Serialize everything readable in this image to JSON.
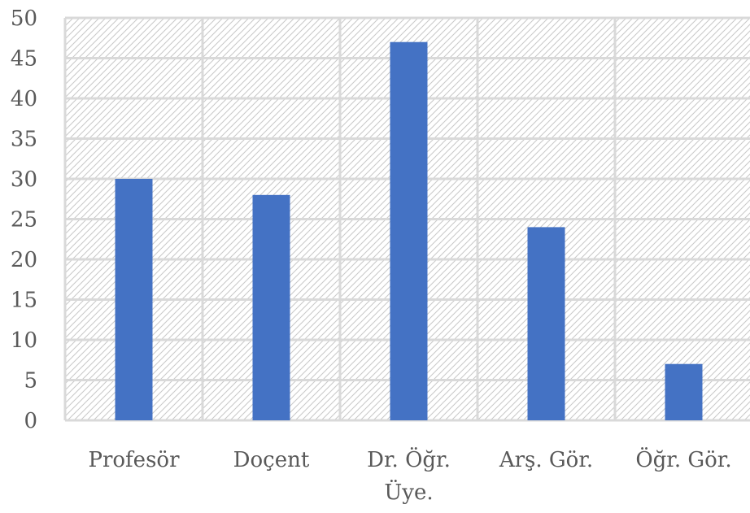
{
  "chart_data": {
    "type": "bar",
    "title": "",
    "xlabel": "",
    "ylabel": "",
    "categories": [
      [
        "Profesör"
      ],
      [
        "Doçent"
      ],
      [
        "Dr. Öğr.",
        "Üye."
      ],
      [
        "Arş. Gör."
      ],
      [
        "Öğr. Gör."
      ]
    ],
    "values": [
      30,
      28,
      47,
      24,
      7
    ],
    "ylim": [
      0,
      50
    ],
    "yticks": [
      0,
      5,
      10,
      15,
      20,
      25,
      30,
      35,
      40,
      45,
      50
    ],
    "grid": true,
    "legend": "none",
    "colors": {
      "bar": "#4472c4",
      "gridline": "#d9d9d9",
      "hatch": "#bfbfbf",
      "text": "#595959"
    }
  }
}
